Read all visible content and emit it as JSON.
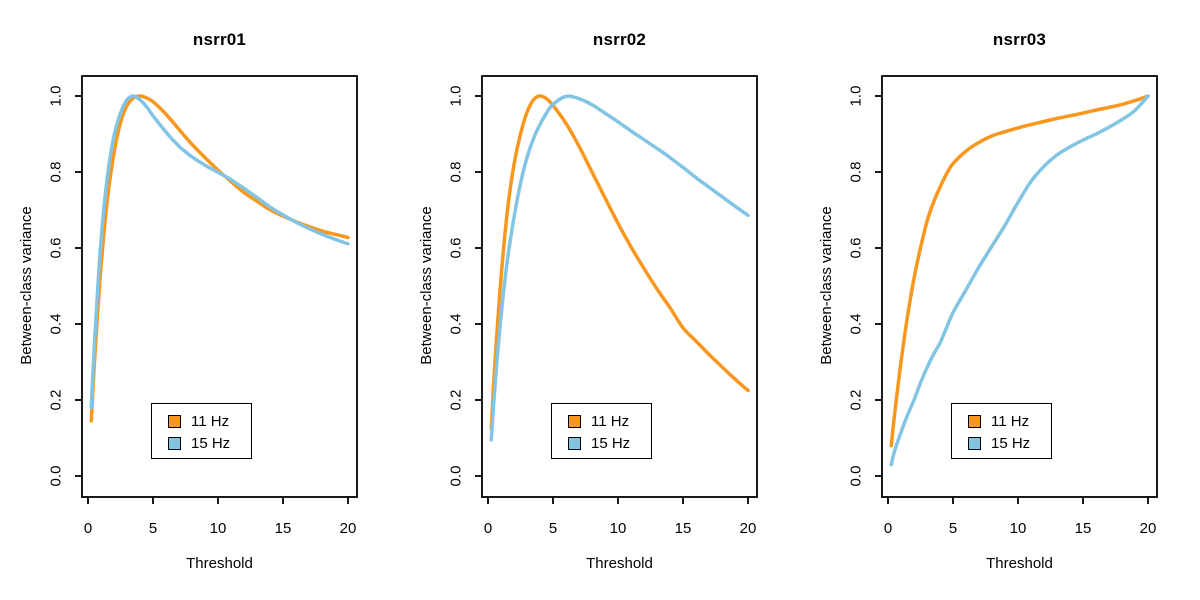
{
  "figure": {
    "background": "#ffffff",
    "axis_color": "#000000"
  },
  "colors": {
    "series_11hz": "#F8971D",
    "series_15hz": "#82C4E3",
    "axis": "#000000"
  },
  "legend": {
    "items": [
      {
        "label": "11 Hz",
        "color_key": "series_11hz"
      },
      {
        "label": "15 Hz",
        "color_key": "series_15hz"
      }
    ]
  },
  "chart_data": [
    {
      "type": "line",
      "title": "nsrr01",
      "xlabel": "Threshold",
      "ylabel": "Between-class variance",
      "xlim": [
        0,
        20
      ],
      "ylim": [
        0,
        1
      ],
      "x_ticks": [
        "0",
        "5",
        "10",
        "15",
        "20"
      ],
      "y_ticks": [
        "0.0",
        "0.2",
        "0.4",
        "0.6",
        "0.8",
        "1.0"
      ],
      "grid": false,
      "legend_position": "bottom-center",
      "x": [
        0.25,
        0.5,
        1,
        1.5,
        2,
        2.5,
        3,
        3.5,
        4,
        4.5,
        5,
        6,
        7,
        8,
        9,
        10,
        11,
        12,
        13,
        14,
        15,
        16,
        17,
        18,
        19,
        20
      ],
      "series": [
        {
          "name": "11 Hz",
          "color_key": "series_11hz",
          "values": [
            0.145,
            0.3,
            0.55,
            0.73,
            0.85,
            0.93,
            0.975,
            0.995,
            1.0,
            0.995,
            0.985,
            0.952,
            0.912,
            0.873,
            0.838,
            0.805,
            0.775,
            0.746,
            0.723,
            0.701,
            0.684,
            0.669,
            0.656,
            0.645,
            0.636,
            0.628
          ]
        },
        {
          "name": "15 Hz",
          "color_key": "series_15hz",
          "values": [
            0.18,
            0.35,
            0.62,
            0.79,
            0.895,
            0.955,
            0.99,
            1.0,
            0.99,
            0.972,
            0.948,
            0.905,
            0.868,
            0.84,
            0.818,
            0.799,
            0.78,
            0.757,
            0.733,
            0.708,
            0.687,
            0.668,
            0.651,
            0.636,
            0.623,
            0.611
          ]
        }
      ]
    },
    {
      "type": "line",
      "title": "nsrr02",
      "xlabel": "Threshold",
      "ylabel": "Between-class variance",
      "xlim": [
        0,
        20
      ],
      "ylim": [
        0,
        1
      ],
      "x_ticks": [
        "0",
        "5",
        "10",
        "15",
        "20"
      ],
      "y_ticks": [
        "0.0",
        "0.2",
        "0.4",
        "0.6",
        "0.8",
        "1.0"
      ],
      "grid": false,
      "legend_position": "bottom-center",
      "x": [
        0.25,
        0.5,
        1,
        1.5,
        2,
        2.5,
        3,
        3.5,
        4,
        4.5,
        5,
        6,
        7,
        8,
        9,
        10,
        11,
        12,
        13,
        14,
        15,
        16,
        17,
        18,
        19,
        20
      ],
      "series": [
        {
          "name": "11 Hz",
          "color_key": "series_11hz",
          "values": [
            0.125,
            0.28,
            0.52,
            0.7,
            0.82,
            0.9,
            0.957,
            0.99,
            1.0,
            0.993,
            0.975,
            0.928,
            0.868,
            0.8,
            0.732,
            0.665,
            0.603,
            0.546,
            0.492,
            0.443,
            0.39,
            0.355,
            0.32,
            0.287,
            0.255,
            0.225
          ]
        },
        {
          "name": "15 Hz",
          "color_key": "series_15hz",
          "values": [
            0.095,
            0.22,
            0.42,
            0.57,
            0.68,
            0.77,
            0.838,
            0.888,
            0.925,
            0.955,
            0.978,
            0.999,
            0.993,
            0.977,
            0.955,
            0.932,
            0.908,
            0.885,
            0.862,
            0.838,
            0.812,
            0.785,
            0.76,
            0.735,
            0.71,
            0.686
          ]
        }
      ]
    },
    {
      "type": "line",
      "title": "nsrr03",
      "xlabel": "Threshold",
      "ylabel": "Between-class variance",
      "xlim": [
        0,
        20
      ],
      "ylim": [
        0,
        1
      ],
      "x_ticks": [
        "0",
        "5",
        "10",
        "15",
        "20"
      ],
      "y_ticks": [
        "0.0",
        "0.2",
        "0.4",
        "0.6",
        "0.8",
        "1.0"
      ],
      "grid": false,
      "legend_position": "bottom-center",
      "x": [
        0.25,
        0.5,
        1,
        1.5,
        2,
        2.5,
        3,
        3.5,
        4,
        4.5,
        5,
        6,
        7,
        8,
        9,
        10,
        11,
        12,
        13,
        14,
        15,
        16,
        17,
        18,
        19,
        20
      ],
      "series": [
        {
          "name": "11 Hz",
          "color_key": "series_11hz",
          "values": [
            0.08,
            0.16,
            0.3,
            0.42,
            0.52,
            0.6,
            0.67,
            0.72,
            0.76,
            0.795,
            0.822,
            0.855,
            0.878,
            0.895,
            0.906,
            0.916,
            0.925,
            0.933,
            0.941,
            0.948,
            0.955,
            0.963,
            0.97,
            0.978,
            0.988,
            1.0
          ]
        },
        {
          "name": "15 Hz",
          "color_key": "series_15hz",
          "values": [
            0.03,
            0.065,
            0.115,
            0.16,
            0.2,
            0.245,
            0.285,
            0.32,
            0.35,
            0.39,
            0.43,
            0.49,
            0.55,
            0.605,
            0.66,
            0.72,
            0.775,
            0.815,
            0.845,
            0.866,
            0.884,
            0.9,
            0.918,
            0.938,
            0.962,
            1.0
          ]
        }
      ]
    }
  ]
}
